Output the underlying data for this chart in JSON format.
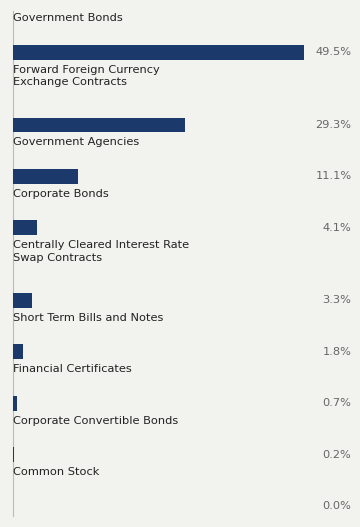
{
  "categories": [
    "Government Bonds",
    "Forward Foreign Currency\nExchange Contracts",
    "Government Agencies",
    "Corporate Bonds",
    "Centrally Cleared Interest Rate\nSwap Contracts",
    "Short Term Bills and Notes",
    "Financial Certificates",
    "Corporate Convertible Bonds",
    "Common Stock"
  ],
  "values": [
    49.5,
    29.3,
    11.1,
    4.1,
    3.3,
    1.8,
    0.7,
    0.2,
    0.0
  ],
  "labels": [
    "49.5%",
    "29.3%",
    "11.1%",
    "4.1%",
    "3.3%",
    "1.8%",
    "0.7%",
    "0.2%",
    "0.0%"
  ],
  "bar_color": "#1b3a6b",
  "background_color": "#f2f2ee",
  "text_color": "#222222",
  "label_color": "#666666",
  "bar_height": 0.32,
  "xlim": [
    0,
    58
  ],
  "figsize": [
    3.6,
    5.27
  ],
  "dpi": 100,
  "label_fontsize": 8.2,
  "cat_fontsize": 8.2
}
